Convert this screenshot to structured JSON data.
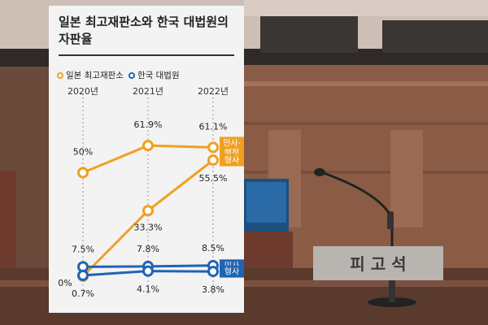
{
  "chart_data": {
    "type": "line",
    "title": "일본 최고재판소와 한국 대법원의 자판율",
    "x": [
      "2020년",
      "2021년",
      "2022년"
    ],
    "series": [
      {
        "name": "일본 최고재판소 민사·행정",
        "values": [
          50,
          61.9,
          61.1
        ],
        "labels": [
          "50%",
          "61.9%",
          "61.1%"
        ],
        "tag": "민사·\n행정",
        "color": "#f0a020"
      },
      {
        "name": "일본 최고재판소 형사",
        "values": [
          0,
          33.3,
          55.5
        ],
        "labels": [
          "0%",
          "33.3%",
          "55.5%"
        ],
        "tag": "형사",
        "color": "#f0a020"
      },
      {
        "name": "한국 대법원 민사",
        "values": [
          7.5,
          7.8,
          8.5
        ],
        "labels": [
          "7.5%",
          "7.8%",
          "8.5%"
        ],
        "tag": "민사",
        "color": "#1f64b4"
      },
      {
        "name": "한국 대법원 형사",
        "values": [
          0.7,
          4.1,
          3.8
        ],
        "labels": [
          "0.7%",
          "4.1%",
          "3.8%"
        ],
        "tag": "형사",
        "color": "#1f64b4"
      }
    ],
    "legend": [
      {
        "label": "일본 최고재판소",
        "color": "#f0a020"
      },
      {
        "label": "한국 대법원",
        "color": "#1f64b4"
      }
    ],
    "ylim": [
      0,
      65
    ],
    "grid": "dotted vertical"
  },
  "scene": {
    "nameplate_text": "피 고 석"
  }
}
